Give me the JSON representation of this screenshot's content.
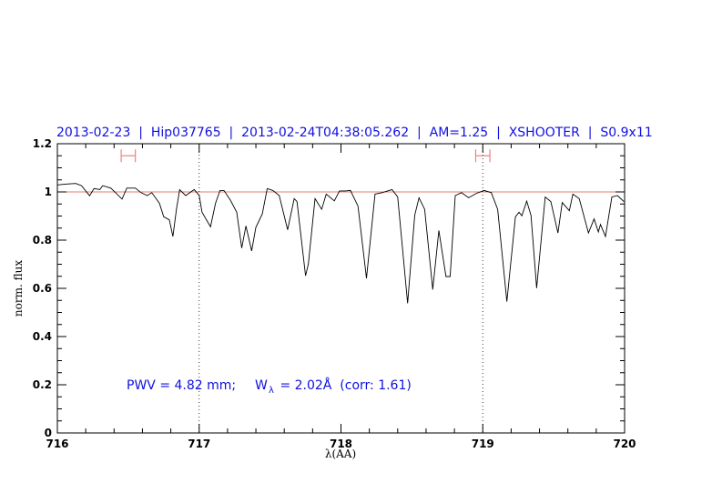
{
  "chart_data": {
    "type": "line",
    "title": "2013-02-23  |  Hip037765  |  2013-02-24T04:38:05.262  |  AM=1.25  |  XSHOOTER  |  S0.9x11",
    "xlabel": "λ(AA)",
    "ylabel": "norm. flux",
    "xlim": [
      716,
      720
    ],
    "ylim": [
      0,
      1.2
    ],
    "xticks": [
      "716",
      "717",
      "718",
      "719",
      "720"
    ],
    "yticks": [
      "0",
      "0.2",
      "0.4",
      "0.6",
      "0.8",
      "1",
      "1.2"
    ],
    "grid": false,
    "reference_line": 1.0,
    "vertical_markers": [
      717,
      719
    ],
    "ranges": [
      [
        716.45,
        716.55
      ],
      [
        718.95,
        719.05
      ]
    ],
    "annotation": {
      "pwv": "PWV = 4.82 mm;",
      "w": "W",
      "sub": "λ",
      "rest": " = 2.02Å  (corr: 1.61)"
    },
    "colors": {
      "spectrum": "#000000",
      "reference": "#e87a6e",
      "range": "#f08080",
      "text": "#1010e0"
    },
    "x": [
      716.0,
      716.066,
      716.13,
      716.17,
      716.227,
      716.259,
      716.3,
      716.32,
      716.377,
      716.41,
      716.456,
      716.49,
      716.55,
      716.59,
      716.634,
      716.666,
      716.72,
      716.75,
      716.79,
      716.815,
      716.84,
      716.862,
      716.905,
      716.965,
      717.0,
      717.02,
      717.08,
      717.115,
      717.147,
      717.175,
      717.22,
      717.265,
      717.3,
      717.33,
      717.37,
      717.4,
      717.445,
      717.48,
      717.52,
      717.565,
      717.624,
      717.67,
      717.69,
      717.75,
      717.77,
      717.817,
      717.864,
      717.896,
      717.953,
      717.99,
      718.03,
      718.067,
      718.12,
      718.18,
      718.24,
      718.29,
      718.36,
      718.4,
      718.47,
      718.52,
      718.55,
      718.59,
      718.647,
      718.69,
      718.74,
      718.77,
      718.806,
      718.85,
      718.9,
      718.955,
      719.009,
      719.06,
      719.105,
      719.17,
      719.23,
      719.255,
      719.276,
      719.31,
      719.34,
      719.38,
      719.44,
      719.48,
      719.53,
      719.56,
      719.61,
      719.635,
      719.68,
      719.745,
      719.785,
      719.815,
      719.83,
      719.865,
      719.91,
      719.95,
      719.995
    ],
    "y": [
      1.029,
      1.033,
      1.035,
      1.026,
      0.984,
      1.014,
      1.01,
      1.026,
      1.016,
      0.997,
      0.97,
      1.016,
      1.016,
      0.997,
      0.985,
      0.997,
      0.953,
      0.897,
      0.884,
      0.815,
      0.928,
      1.009,
      0.985,
      1.01,
      0.985,
      0.916,
      0.855,
      0.953,
      1.006,
      1.006,
      0.966,
      0.916,
      0.767,
      0.859,
      0.755,
      0.853,
      0.909,
      1.014,
      1.006,
      0.985,
      0.843,
      0.972,
      0.96,
      0.652,
      0.702,
      0.972,
      0.928,
      0.991,
      0.963,
      1.004,
      1.004,
      1.006,
      0.941,
      0.642,
      0.991,
      0.997,
      1.01,
      0.979,
      0.538,
      0.903,
      0.976,
      0.928,
      0.595,
      0.84,
      0.649,
      0.649,
      0.985,
      0.997,
      0.976,
      0.994,
      1.006,
      0.997,
      0.928,
      0.545,
      0.897,
      0.916,
      0.901,
      0.962,
      0.903,
      0.601,
      0.979,
      0.96,
      0.83,
      0.956,
      0.922,
      0.991,
      0.972,
      0.83,
      0.888,
      0.834,
      0.865,
      0.815,
      0.979,
      0.985,
      0.96
    ]
  }
}
